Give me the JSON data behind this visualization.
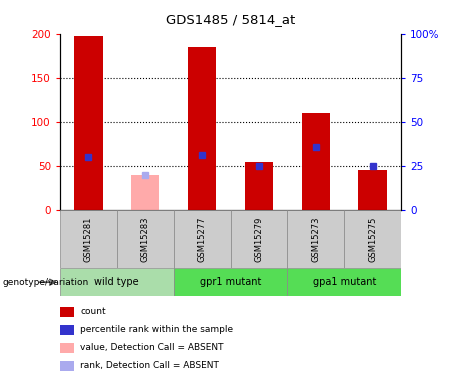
{
  "title": "GDS1485 / 5814_at",
  "samples": [
    "GSM15281",
    "GSM15283",
    "GSM15277",
    "GSM15279",
    "GSM15273",
    "GSM15275"
  ],
  "count_values": [
    198,
    0,
    185,
    55,
    110,
    45
  ],
  "rank_values": [
    30,
    0,
    31,
    25,
    36,
    25
  ],
  "absent_count": [
    0,
    40,
    0,
    0,
    0,
    0
  ],
  "absent_rank": [
    0,
    20,
    0,
    0,
    0,
    0
  ],
  "left_ylim": [
    0,
    200
  ],
  "right_ylim": [
    0,
    100
  ],
  "left_yticks": [
    0,
    50,
    100,
    150,
    200
  ],
  "right_yticks": [
    0,
    25,
    50,
    75,
    100
  ],
  "left_yticklabels": [
    "0",
    "50",
    "100",
    "150",
    "200"
  ],
  "right_yticklabels": [
    "0",
    "25",
    "50",
    "75",
    "100%"
  ],
  "bar_color": "#cc0000",
  "rank_color": "#3333cc",
  "absent_bar_color": "#ffaaaa",
  "absent_rank_color": "#aaaaee",
  "sample_box_color": "#cccccc",
  "group_defs": [
    {
      "name": "wild type",
      "indices": [
        0,
        1
      ],
      "color": "#aaddaa"
    },
    {
      "name": "gpr1 mutant",
      "indices": [
        2,
        3
      ],
      "color": "#55dd55"
    },
    {
      "name": "gpa1 mutant",
      "indices": [
        4,
        5
      ],
      "color": "#55dd55"
    }
  ],
  "legend_items": [
    {
      "color": "#cc0000",
      "label": "count"
    },
    {
      "color": "#3333cc",
      "label": "percentile rank within the sample"
    },
    {
      "color": "#ffaaaa",
      "label": "value, Detection Call = ABSENT"
    },
    {
      "color": "#aaaaee",
      "label": "rank, Detection Call = ABSENT"
    }
  ]
}
